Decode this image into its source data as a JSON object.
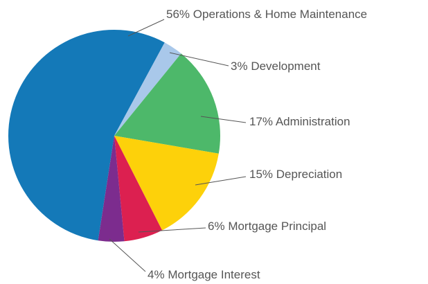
{
  "chart_data": {
    "type": "pie",
    "categories": [
      "Operations & Home Maintenance",
      "Development",
      "Administration",
      "Depreciation",
      "Mortgage Principal",
      "Mortgage Interest"
    ],
    "values": [
      56,
      3,
      17,
      15,
      6,
      4
    ],
    "value_labels": [
      "56%",
      "3%",
      "17%",
      "15%",
      "6%",
      "4%"
    ],
    "colors": [
      "#1479b8",
      "#a9c8ea",
      "#4db86a",
      "#fdd10a",
      "#dc2050",
      "#7c2c8e"
    ]
  }
}
